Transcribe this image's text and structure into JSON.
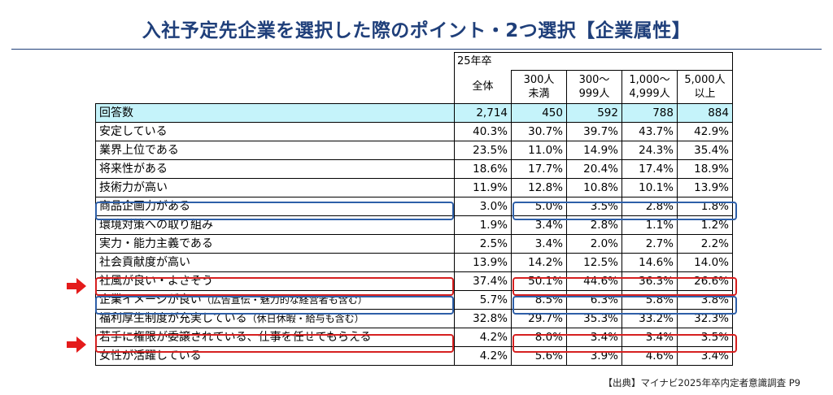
{
  "title": "入社予定先企業を選択した際のポイント・2つ選択【企業属性】",
  "table": {
    "year_label": "25年卒",
    "columns": [
      {
        "line1": "全体",
        "line2": ""
      },
      {
        "line1": "300人",
        "line2": "未満"
      },
      {
        "line1": "300～",
        "line2": "999人"
      },
      {
        "line1": "1,000～",
        "line2": "4,999人"
      },
      {
        "line1": "5,000人",
        "line2": "以上"
      }
    ],
    "rows": [
      {
        "label": "回答数",
        "note": "",
        "values": [
          "2,714",
          "450",
          "592",
          "788",
          "884"
        ]
      },
      {
        "label": "安定している",
        "note": "",
        "values": [
          "40.3%",
          "30.7%",
          "39.7%",
          "43.7%",
          "42.9%"
        ]
      },
      {
        "label": "業界上位である",
        "note": "",
        "values": [
          "23.5%",
          "11.0%",
          "14.9%",
          "24.3%",
          "35.4%"
        ]
      },
      {
        "label": "将来性がある",
        "note": "",
        "values": [
          "18.6%",
          "17.7%",
          "20.4%",
          "17.4%",
          "18.9%"
        ]
      },
      {
        "label": "技術力が高い",
        "note": "",
        "values": [
          "11.9%",
          "12.8%",
          "10.8%",
          "10.1%",
          "13.9%"
        ]
      },
      {
        "label": "商品企画力がある",
        "note": "",
        "values": [
          "3.0%",
          "5.0%",
          "3.5%",
          "2.8%",
          "1.8%"
        ]
      },
      {
        "label": "環境対策への取り組み",
        "note": "",
        "values": [
          "1.9%",
          "3.4%",
          "2.8%",
          "1.1%",
          "1.2%"
        ]
      },
      {
        "label": "実力・能力主義である",
        "note": "",
        "values": [
          "2.5%",
          "3.4%",
          "2.0%",
          "2.7%",
          "2.2%"
        ]
      },
      {
        "label": "社会貢献度が高い",
        "note": "",
        "values": [
          "13.9%",
          "14.2%",
          "12.5%",
          "14.6%",
          "14.0%"
        ]
      },
      {
        "label": "社風が良い・よさそう",
        "note": "",
        "values": [
          "37.4%",
          "50.1%",
          "44.6%",
          "36.3%",
          "26.6%"
        ]
      },
      {
        "label": "企業イメージが良い",
        "note": "（広告宣伝・魅力的な経営者も含む）",
        "values": [
          "5.7%",
          "8.5%",
          "6.3%",
          "5.8%",
          "3.8%"
        ]
      },
      {
        "label": "福利厚生制度が充実している",
        "note": "（休日休暇・給与も含む）",
        "values": [
          "32.8%",
          "29.7%",
          "35.3%",
          "33.2%",
          "32.3%"
        ]
      },
      {
        "label": "若手に権限が委譲されている、仕事を任せてもらえる",
        "note": "",
        "values": [
          "4.2%",
          "8.0%",
          "3.4%",
          "3.4%",
          "3.5%"
        ]
      },
      {
        "label": "女性が活躍している",
        "note": "",
        "values": [
          "4.2%",
          "5.6%",
          "3.9%",
          "4.6%",
          "3.4%"
        ]
      }
    ]
  },
  "highlight_colors": {
    "blue": "#2e5fa8",
    "red": "#d62020",
    "arrow": "#e41b1b",
    "count_row_bg": "#c5f3fa"
  },
  "source": "【出典】マイナビ2025年卒内定者意識調査 P9"
}
